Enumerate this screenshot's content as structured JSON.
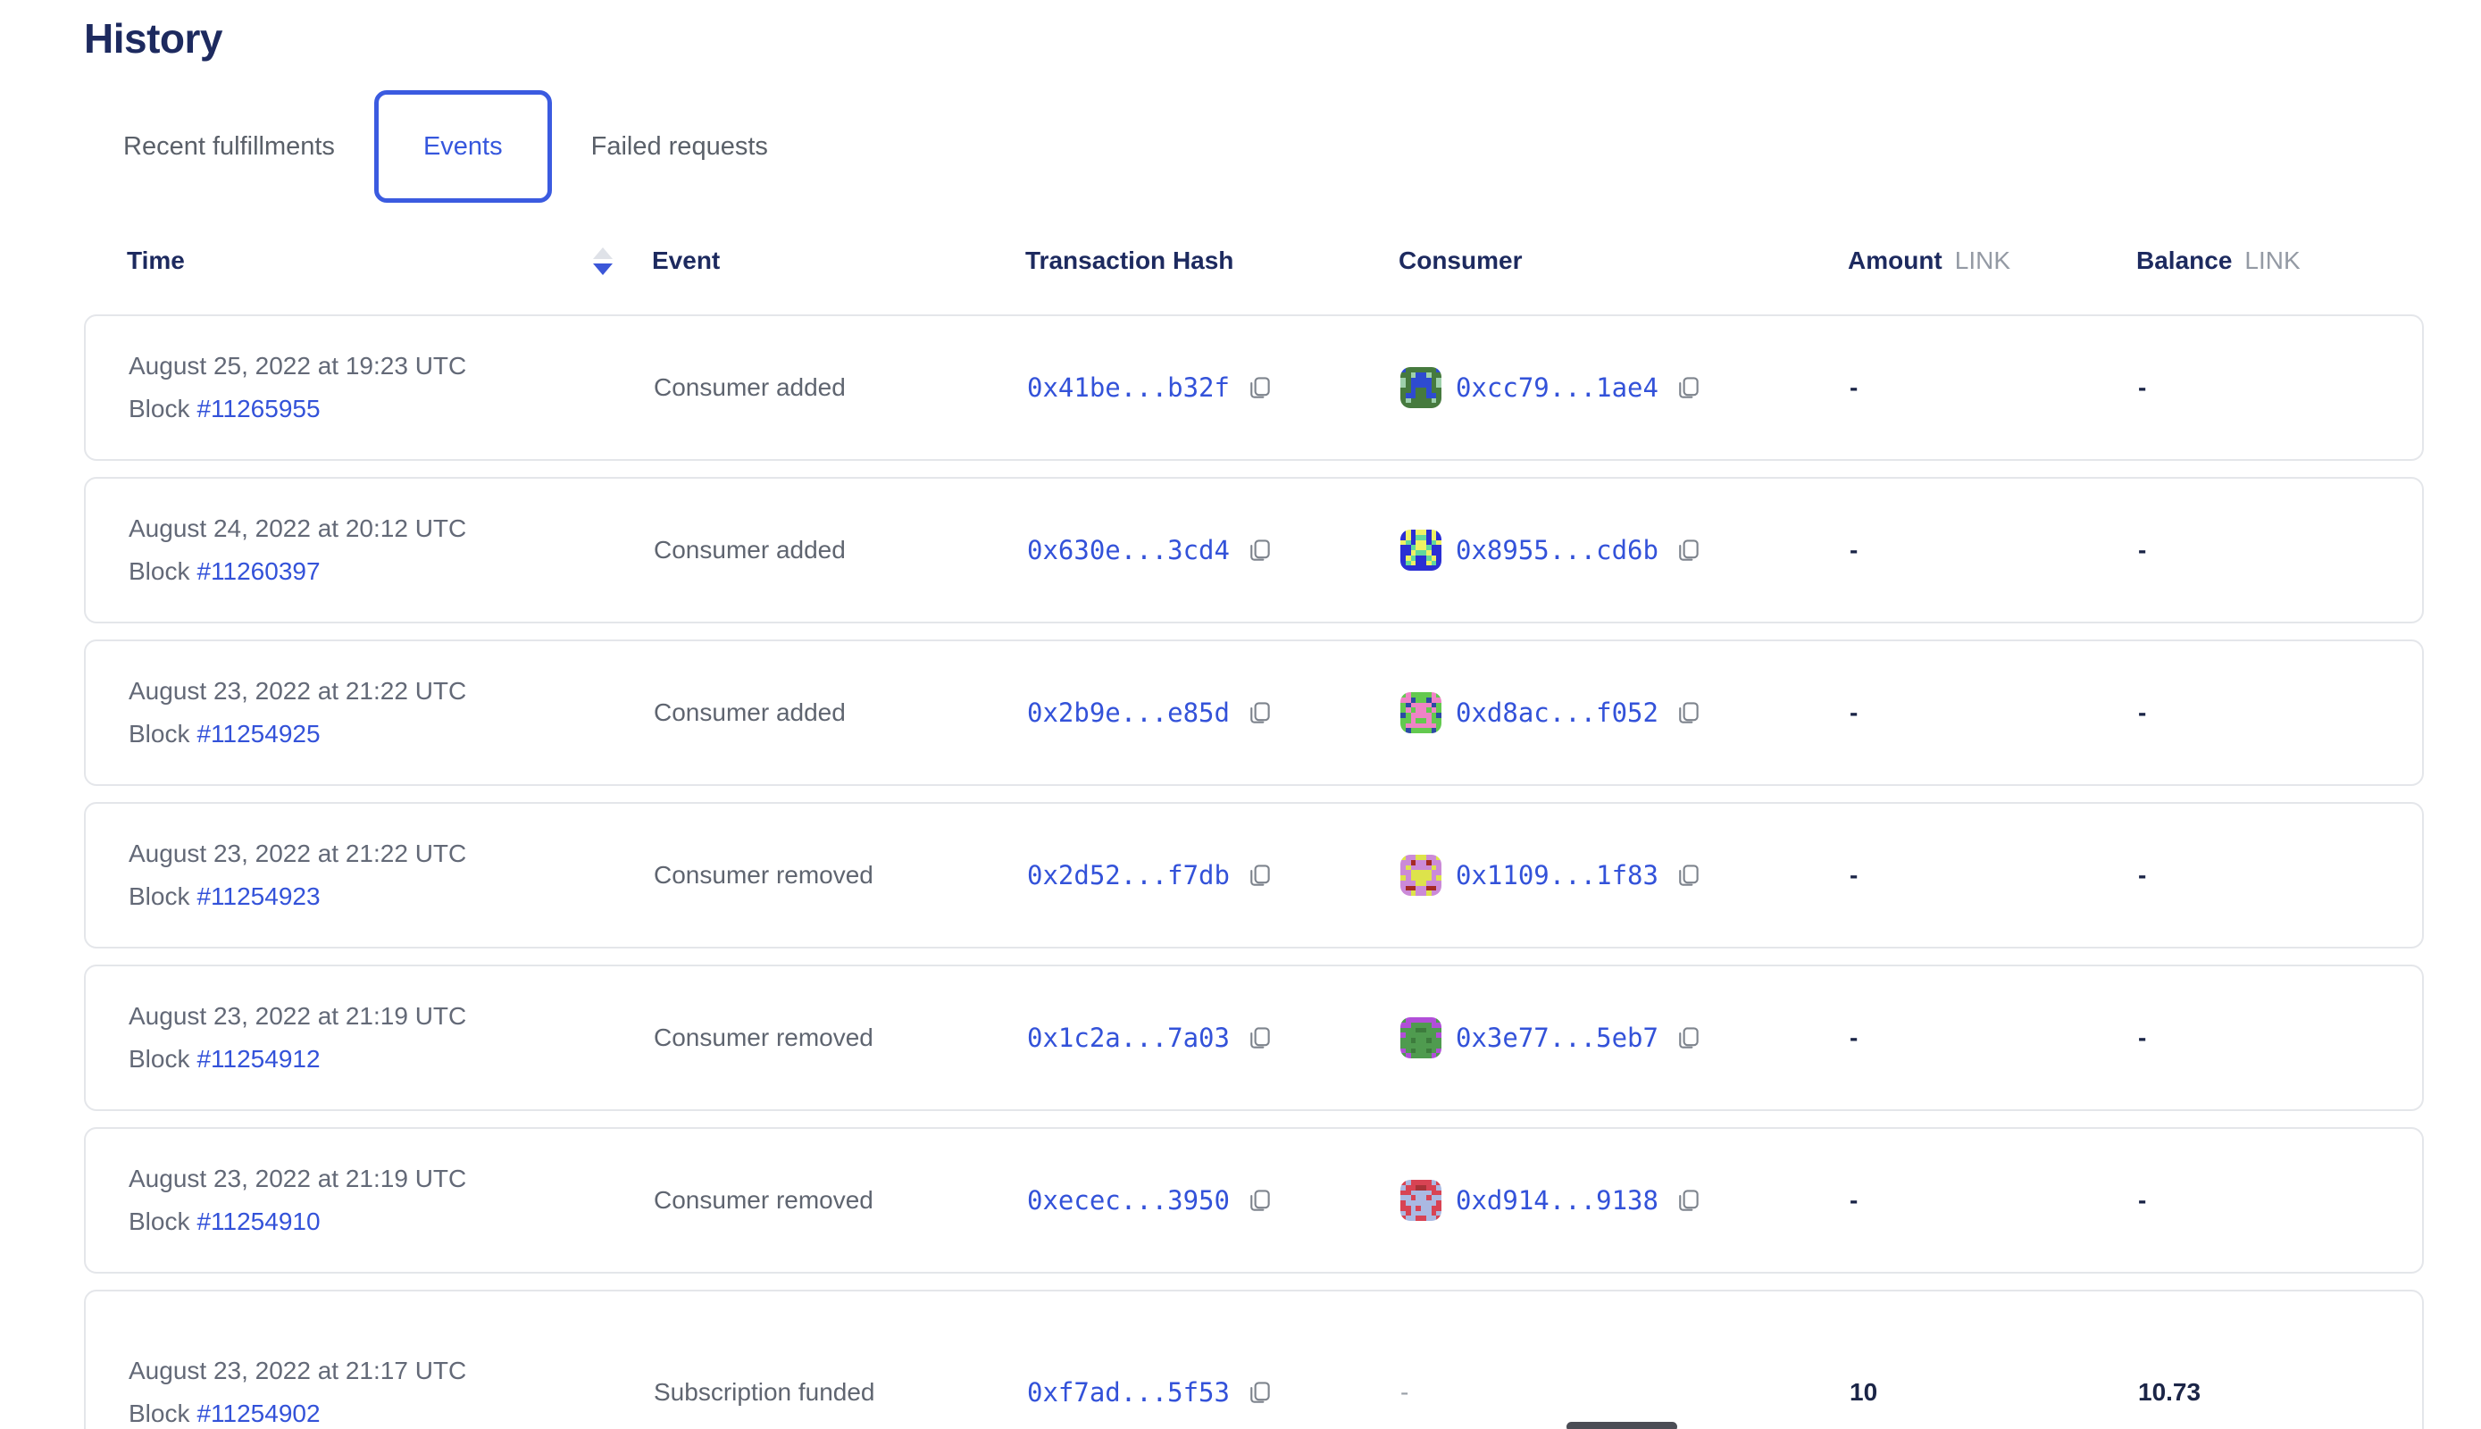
{
  "page": {
    "title": "History"
  },
  "tabs": [
    {
      "label": "Recent fulfillments",
      "active": false
    },
    {
      "label": "Events",
      "active": true
    },
    {
      "label": "Failed requests",
      "active": false
    }
  ],
  "colors": {
    "accent_blue": "#3352d9",
    "tab_active_blue": "#3657dd",
    "heading_navy": "#1d2a5f",
    "body_gray": "#636977",
    "card_border": "#e4e6ea"
  },
  "table": {
    "headers": {
      "time": "Time",
      "event": "Event",
      "transaction_hash": "Transaction Hash",
      "consumer": "Consumer",
      "amount": "Amount",
      "balance": "Balance",
      "unit": "LINK"
    },
    "sort": {
      "column": "time",
      "direction": "desc"
    },
    "rows": [
      {
        "date": "August 25, 2022 at 19:23 UTC",
        "block_label": "Block",
        "block": "#11265955",
        "event": "Consumer added",
        "tx_hash": "0x41be...b32f",
        "consumer": "0xcc79...1ae4",
        "amount": "-",
        "balance": "-",
        "identicon": {
          "bg": "#467a3e",
          "accent": "#2e4bd1",
          "spot": "#9ed0ab",
          "pattern": [
            "10000001",
            "00211200",
            "20111102",
            "20111102",
            "00100100",
            "01100110",
            "02000020",
            "00000000"
          ]
        }
      },
      {
        "date": "August 24, 2022 at 20:12 UTC",
        "block_label": "Block",
        "block": "#11260397",
        "event": "Consumer added",
        "tx_hash": "0x630e...3cd4",
        "consumer": "0x8955...cd6b",
        "amount": "-",
        "balance": "-",
        "identicon": {
          "bg": "#2b2fd4",
          "accent": "#eef163",
          "spot": "#62d99c",
          "pattern": [
            "01011010",
            "01022010",
            "12011021",
            "00211200",
            "00122100",
            "01200210",
            "02100120",
            "00000000"
          ]
        }
      },
      {
        "date": "August 23, 2022 at 21:22 UTC",
        "block_label": "Block",
        "block": "#11254925",
        "event": "Consumer added",
        "tx_hash": "0x2b9e...e85d",
        "consumer": "0xd8ac...f052",
        "amount": "-",
        "balance": "-",
        "identicon": {
          "bg": "#63c94f",
          "accent": "#ef83c6",
          "spot": "#2b4aa4",
          "pattern": [
            "01000010",
            "11200211",
            "02111120",
            "01011010",
            "20111102",
            "00100100",
            "01111110",
            "02000020"
          ]
        }
      },
      {
        "date": "August 23, 2022 at 21:22 UTC",
        "block_label": "Block",
        "block": "#11254923",
        "event": "Consumer removed",
        "tx_hash": "0x2d52...f7db",
        "consumer": "0x1109...1f83",
        "amount": "-",
        "balance": "-",
        "identicon": {
          "bg": "#cb8ad8",
          "accent": "#dde34b",
          "spot": "#a52a24",
          "pattern": [
            "10011001",
            "00200200",
            "01000010",
            "00111100",
            "10111101",
            "00011000",
            "02200220",
            "00100100"
          ]
        }
      },
      {
        "date": "August 23, 2022 at 21:19 UTC",
        "block_label": "Block",
        "block": "#11254912",
        "event": "Consumer removed",
        "tx_hash": "0x1c2a...7a03",
        "consumer": "0x3e77...5eb7",
        "amount": "-",
        "balance": "-",
        "identicon": {
          "bg": "#4f9b4f",
          "accent": "#b14fd8",
          "spot": "#3d7c3d",
          "pattern": [
            "01111110",
            "11000011",
            "00022000",
            "10000001",
            "00200200",
            "00000000",
            "10200201",
            "01000010"
          ]
        }
      },
      {
        "date": "August 23, 2022 at 21:19 UTC",
        "block_label": "Block",
        "block": "#11254910",
        "event": "Consumer removed",
        "tx_hash": "0xecec...3950",
        "consumer": "0xd914...9138",
        "amount": "-",
        "balance": "-",
        "identicon": {
          "bg": "#d84353",
          "accent": "#aab9e2",
          "spot": "#a83338",
          "pattern": [
            "01000010",
            "10022001",
            "00111100",
            "11011011",
            "01111110",
            "00101100",
            "10111101",
            "01100110"
          ]
        }
      },
      {
        "date": "August 23, 2022 at 21:17 UTC",
        "block_label": "Block",
        "block": "#11254902",
        "event": "Subscription funded",
        "tx_hash": "0xf7ad...5f53",
        "consumer": "-",
        "amount": "10",
        "balance": "10.73",
        "identicon": null
      }
    ]
  }
}
